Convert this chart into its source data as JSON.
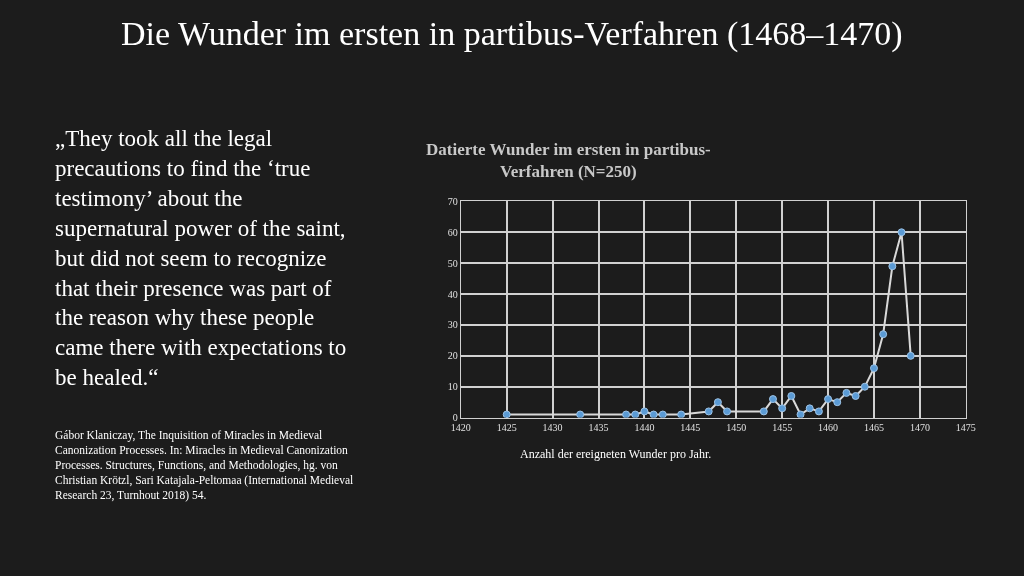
{
  "chart_data": {
    "type": "line",
    "title": "Datierte Wunder im ersten in partibus-\nVerfahren (N=250)",
    "xlabel": "Anzahl der ereigneten Wunder pro Jahr.",
    "x": [
      1425,
      1433,
      1438,
      1439,
      1440,
      1441,
      1442,
      1444,
      1447,
      1448,
      1449,
      1453,
      1454,
      1455,
      1456,
      1457,
      1458,
      1459,
      1460,
      1461,
      1462,
      1463,
      1464,
      1465,
      1466,
      1467,
      1468,
      1469
    ],
    "series": [
      {
        "color": "#5b9bd5",
        "values": [
          1,
          1,
          1,
          1,
          2,
          1,
          1,
          1,
          2,
          5,
          2,
          2,
          6,
          3,
          7,
          1,
          3,
          2,
          6,
          5,
          8,
          7,
          10,
          16,
          27,
          49,
          60,
          20
        ]
      }
    ],
    "xlim": [
      1420,
      1475
    ],
    "xticks": [
      1420,
      1425,
      1430,
      1435,
      1440,
      1445,
      1450,
      1455,
      1460,
      1465,
      1470,
      1475
    ],
    "ylim": [
      0,
      70
    ],
    "yticks": [
      0,
      10,
      20,
      30,
      40,
      50,
      60,
      70
    ],
    "grid": true,
    "marker": "circle",
    "line_style": "solid",
    "annotations": [
      "Die Wunder im ersten in partibus-Verfahren (1468–1470)",
      "„They took all the legal\nprecautions to find the ‘true\ntestimony’ about the\nsupernatural power of the saint,\nbut did not seem to recognize\nthat their presence was part of\nthe reason why these people\ncame there with expectations to\nbe healed.“",
      "Gábor Klaniczay, The Inquisition of Miracles in Medieval\nCanonization Processes. In: Miracles in Medieval Canonization\nProcesses. Structures, Functions, and Methodologies, hg. von\nChristian Krötzl, Sari Katajala-Peltomaa (International Medieval\nResearch 23, Turnhout 2018) 54."
    ]
  }
}
